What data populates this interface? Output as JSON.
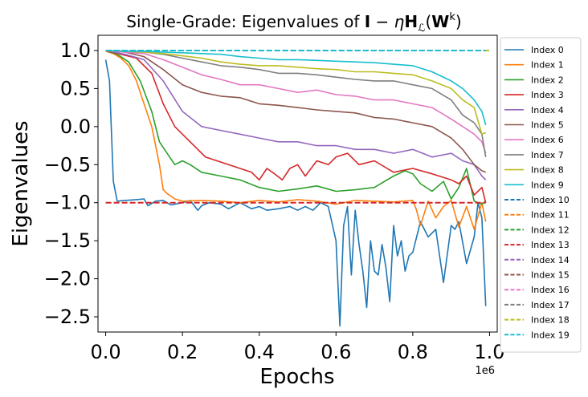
{
  "chart_data": {
    "type": "line",
    "title": "Single-Grade: Eigenvalues of I − ηH_ℒ(W^k)",
    "title_parts": {
      "prefix": "Single-Grade: Eigenvalues of ",
      "I": "I",
      "minus": " − ",
      "eta": "η",
      "H": "H",
      "sub": "ℒ",
      "open": "(",
      "W": "W",
      "sup": "k",
      "close": ")"
    },
    "xlabel": "Epochs",
    "ylabel": "Eigenvalues",
    "x_offset_label": "1e6",
    "xlim": [
      -0.02,
      1.02
    ],
    "ylim": [
      -2.7,
      1.2
    ],
    "x_ticks": [
      0.0,
      0.2,
      0.4,
      0.6,
      0.8,
      1.0
    ],
    "x_tick_labels": [
      "0.0",
      "0.2",
      "0.4",
      "0.6",
      "0.8",
      "1.0"
    ],
    "y_ticks": [
      1.0,
      0.5,
      0.0,
      -0.5,
      -1.0,
      -1.5,
      -2.0,
      -2.5
    ],
    "y_tick_labels": [
      "1.0",
      "0.5",
      "0.0",
      "−0.5",
      "−1.0",
      "−1.5",
      "−2.0",
      "−2.5"
    ],
    "legend_position": "outside-right",
    "grid": false,
    "series": [
      {
        "name": "Index 0",
        "color": "#1f77b4",
        "style": "solid",
        "x": [
          0.0,
          0.01,
          0.02,
          0.03,
          0.05,
          0.08,
          0.1,
          0.11,
          0.13,
          0.15,
          0.17,
          0.2,
          0.22,
          0.24,
          0.25,
          0.27,
          0.3,
          0.32,
          0.35,
          0.38,
          0.4,
          0.42,
          0.45,
          0.48,
          0.5,
          0.52,
          0.54,
          0.56,
          0.58,
          0.6,
          0.61,
          0.62,
          0.63,
          0.64,
          0.65,
          0.66,
          0.67,
          0.68,
          0.69,
          0.7,
          0.71,
          0.72,
          0.73,
          0.74,
          0.75,
          0.76,
          0.77,
          0.78,
          0.79,
          0.8,
          0.82,
          0.84,
          0.86,
          0.88,
          0.9,
          0.91,
          0.92,
          0.94,
          0.96,
          0.97,
          0.98,
          0.99
        ],
        "y": [
          0.88,
          0.6,
          -0.72,
          -0.98,
          -0.97,
          -0.96,
          -0.95,
          -1.04,
          -0.98,
          -0.97,
          -1.03,
          -1.0,
          -0.97,
          -1.1,
          -1.04,
          -1.0,
          -1.02,
          -1.08,
          -1.0,
          -1.08,
          -1.05,
          -1.1,
          -1.08,
          -1.05,
          -1.1,
          -1.05,
          -1.1,
          -1.0,
          -1.05,
          -1.5,
          -2.62,
          -1.3,
          -1.05,
          -1.95,
          -1.1,
          -1.55,
          -1.9,
          -2.38,
          -1.5,
          -1.9,
          -1.95,
          -1.55,
          -1.85,
          -2.3,
          -1.3,
          -1.7,
          -1.5,
          -1.9,
          -1.7,
          -1.65,
          -1.25,
          -1.45,
          -1.35,
          -2.05,
          -1.3,
          -1.35,
          -1.25,
          -1.8,
          -1.45,
          -1.0,
          -1.2,
          -2.36
        ]
      },
      {
        "name": "Index 1",
        "color": "#ff7f0e",
        "style": "solid",
        "x": [
          0.0,
          0.02,
          0.04,
          0.06,
          0.08,
          0.1,
          0.12,
          0.14,
          0.15,
          0.16,
          0.18,
          0.2,
          0.25,
          0.3,
          0.35,
          0.4,
          0.45,
          0.5,
          0.55,
          0.6,
          0.65,
          0.7,
          0.75,
          0.8,
          0.81,
          0.82,
          0.84,
          0.86,
          0.88,
          0.9,
          0.92,
          0.94,
          0.96,
          0.98,
          0.99
        ],
        "y": [
          0.99,
          0.96,
          0.9,
          0.8,
          0.6,
          0.3,
          0.0,
          -0.5,
          -0.83,
          -0.88,
          -0.95,
          -0.98,
          -0.97,
          -0.98,
          -1.0,
          -0.97,
          -0.99,
          -0.96,
          -0.98,
          -1.02,
          -0.97,
          -0.98,
          -0.99,
          -0.97,
          -1.1,
          -1.3,
          -0.98,
          -1.2,
          -1.05,
          -0.97,
          -1.32,
          -1.05,
          -1.35,
          -1.0,
          -1.25
        ]
      },
      {
        "name": "Index 2",
        "color": "#2ca02c",
        "style": "solid",
        "x": [
          0.0,
          0.03,
          0.06,
          0.09,
          0.12,
          0.14,
          0.16,
          0.18,
          0.2,
          0.22,
          0.25,
          0.3,
          0.35,
          0.4,
          0.45,
          0.5,
          0.55,
          0.6,
          0.65,
          0.7,
          0.75,
          0.78,
          0.8,
          0.82,
          0.85,
          0.88,
          0.9,
          0.92,
          0.94,
          0.96,
          0.98,
          0.99
        ],
        "y": [
          1.0,
          0.95,
          0.85,
          0.6,
          0.2,
          -0.2,
          -0.35,
          -0.5,
          -0.45,
          -0.5,
          -0.6,
          -0.65,
          -0.7,
          -0.8,
          -0.85,
          -0.82,
          -0.78,
          -0.85,
          -0.83,
          -0.8,
          -0.65,
          -0.58,
          -0.62,
          -0.75,
          -0.85,
          -0.72,
          -0.95,
          -0.8,
          -0.55,
          -0.98,
          -1.02,
          -0.98
        ]
      },
      {
        "name": "Index 3",
        "color": "#d62728",
        "style": "solid",
        "x": [
          0.0,
          0.04,
          0.08,
          0.12,
          0.15,
          0.18,
          0.2,
          0.23,
          0.26,
          0.29,
          0.32,
          0.35,
          0.38,
          0.4,
          0.42,
          0.44,
          0.46,
          0.48,
          0.5,
          0.52,
          0.55,
          0.58,
          0.6,
          0.63,
          0.66,
          0.7,
          0.75,
          0.8,
          0.85,
          0.9,
          0.92,
          0.94,
          0.96,
          0.98,
          0.99
        ],
        "y": [
          1.0,
          0.95,
          0.9,
          0.7,
          0.3,
          0.0,
          -0.1,
          -0.25,
          -0.4,
          -0.45,
          -0.5,
          -0.55,
          -0.6,
          -0.7,
          -0.55,
          -0.62,
          -0.7,
          -0.55,
          -0.5,
          -0.65,
          -0.45,
          -0.5,
          -0.4,
          -0.35,
          -0.5,
          -0.45,
          -0.6,
          -0.55,
          -0.62,
          -0.7,
          -0.75,
          -0.65,
          -0.9,
          -0.8,
          -1.0
        ]
      },
      {
        "name": "Index 4",
        "color": "#9467bd",
        "style": "solid",
        "x": [
          0.0,
          0.05,
          0.1,
          0.15,
          0.2,
          0.25,
          0.3,
          0.35,
          0.4,
          0.45,
          0.5,
          0.55,
          0.6,
          0.65,
          0.7,
          0.75,
          0.8,
          0.85,
          0.9,
          0.93,
          0.96,
          0.98,
          0.99
        ],
        "y": [
          1.0,
          0.95,
          0.88,
          0.6,
          0.2,
          0.0,
          -0.05,
          -0.1,
          -0.15,
          -0.2,
          -0.2,
          -0.25,
          -0.25,
          -0.3,
          -0.3,
          -0.35,
          -0.3,
          -0.4,
          -0.35,
          -0.45,
          -0.5,
          -0.65,
          -0.7
        ]
      },
      {
        "name": "Index 5",
        "color": "#8c564b",
        "style": "solid",
        "x": [
          0.0,
          0.05,
          0.1,
          0.15,
          0.2,
          0.25,
          0.3,
          0.35,
          0.4,
          0.45,
          0.5,
          0.55,
          0.6,
          0.65,
          0.7,
          0.75,
          0.8,
          0.85,
          0.9,
          0.93,
          0.96,
          0.98,
          0.99
        ],
        "y": [
          1.0,
          0.98,
          0.92,
          0.75,
          0.55,
          0.45,
          0.4,
          0.38,
          0.3,
          0.28,
          0.25,
          0.22,
          0.2,
          0.18,
          0.12,
          0.1,
          0.05,
          0.0,
          -0.15,
          -0.3,
          -0.5,
          -0.58,
          -0.6
        ]
      },
      {
        "name": "Index 6",
        "color": "#e377c2",
        "style": "solid",
        "x": [
          0.0,
          0.05,
          0.1,
          0.15,
          0.2,
          0.25,
          0.3,
          0.35,
          0.4,
          0.45,
          0.5,
          0.55,
          0.6,
          0.65,
          0.7,
          0.75,
          0.8,
          0.85,
          0.9,
          0.93,
          0.96,
          0.98,
          0.99
        ],
        "y": [
          1.0,
          0.98,
          0.96,
          0.88,
          0.78,
          0.68,
          0.62,
          0.55,
          0.55,
          0.5,
          0.45,
          0.48,
          0.42,
          0.4,
          0.35,
          0.35,
          0.3,
          0.25,
          0.1,
          0.0,
          -0.1,
          -0.2,
          -0.35
        ]
      },
      {
        "name": "Index 7",
        "color": "#7f7f7f",
        "style": "solid",
        "x": [
          0.0,
          0.05,
          0.1,
          0.15,
          0.2,
          0.25,
          0.3,
          0.35,
          0.4,
          0.45,
          0.5,
          0.55,
          0.6,
          0.65,
          0.7,
          0.75,
          0.8,
          0.85,
          0.9,
          0.93,
          0.96,
          0.98,
          0.99
        ],
        "y": [
          1.0,
          0.99,
          0.98,
          0.95,
          0.9,
          0.85,
          0.8,
          0.78,
          0.75,
          0.7,
          0.7,
          0.68,
          0.65,
          0.62,
          0.6,
          0.6,
          0.55,
          0.5,
          0.35,
          0.15,
          0.05,
          -0.1,
          -0.4
        ]
      },
      {
        "name": "Index 8",
        "color": "#bcbd22",
        "style": "solid",
        "x": [
          0.0,
          0.05,
          0.1,
          0.15,
          0.2,
          0.25,
          0.3,
          0.35,
          0.4,
          0.45,
          0.5,
          0.55,
          0.6,
          0.65,
          0.7,
          0.75,
          0.8,
          0.85,
          0.9,
          0.93,
          0.96,
          0.98,
          0.99
        ],
        "y": [
          1.0,
          0.99,
          0.98,
          0.96,
          0.93,
          0.9,
          0.85,
          0.82,
          0.8,
          0.8,
          0.78,
          0.76,
          0.75,
          0.72,
          0.72,
          0.7,
          0.68,
          0.6,
          0.5,
          0.35,
          0.25,
          -0.1,
          -0.08
        ]
      },
      {
        "name": "Index 9",
        "color": "#17becf",
        "style": "solid",
        "x": [
          0.0,
          0.05,
          0.1,
          0.15,
          0.2,
          0.25,
          0.3,
          0.35,
          0.4,
          0.45,
          0.5,
          0.55,
          0.6,
          0.65,
          0.7,
          0.75,
          0.8,
          0.85,
          0.9,
          0.93,
          0.96,
          0.98,
          0.99
        ],
        "y": [
          1.0,
          0.99,
          0.99,
          0.98,
          0.97,
          0.96,
          0.95,
          0.92,
          0.9,
          0.88,
          0.88,
          0.87,
          0.86,
          0.85,
          0.84,
          0.82,
          0.8,
          0.72,
          0.6,
          0.5,
          0.35,
          0.2,
          0.02
        ]
      },
      {
        "name": "Index 10",
        "color": "#1f77b4",
        "style": "dashed",
        "x": [
          0.0,
          1.0
        ],
        "y": [
          1.0,
          1.0
        ]
      },
      {
        "name": "Index 11",
        "color": "#ff7f0e",
        "style": "dashed",
        "x": [
          0.0,
          1.0
        ],
        "y": [
          1.0,
          1.0
        ]
      },
      {
        "name": "Index 12",
        "color": "#2ca02c",
        "style": "dashed",
        "x": [
          0.0,
          1.0
        ],
        "y": [
          1.0,
          1.0
        ]
      },
      {
        "name": "Index 13",
        "color": "#d62728",
        "style": "dashed",
        "x": [
          0.0,
          0.99
        ],
        "y": [
          -1.0,
          -1.0
        ]
      },
      {
        "name": "Index 14",
        "color": "#9467bd",
        "style": "dashed",
        "x": [
          0.0,
          1.0
        ],
        "y": [
          1.0,
          1.0
        ]
      },
      {
        "name": "Index 15",
        "color": "#8c564b",
        "style": "dashed",
        "x": [
          0.0,
          1.0
        ],
        "y": [
          1.0,
          1.0
        ]
      },
      {
        "name": "Index 16",
        "color": "#e377c2",
        "style": "dashed",
        "x": [
          0.0,
          1.0
        ],
        "y": [
          1.0,
          1.0
        ]
      },
      {
        "name": "Index 17",
        "color": "#7f7f7f",
        "style": "dashed",
        "x": [
          0.0,
          1.0
        ],
        "y": [
          1.0,
          1.0
        ]
      },
      {
        "name": "Index 18",
        "color": "#bcbd22",
        "style": "dashed",
        "x": [
          0.0,
          1.0
        ],
        "y": [
          1.0,
          1.0
        ]
      },
      {
        "name": "Index 19",
        "color": "#17becf",
        "style": "dashed",
        "x": [
          0.0,
          0.99
        ],
        "y": [
          1.0,
          1.0
        ]
      }
    ]
  }
}
